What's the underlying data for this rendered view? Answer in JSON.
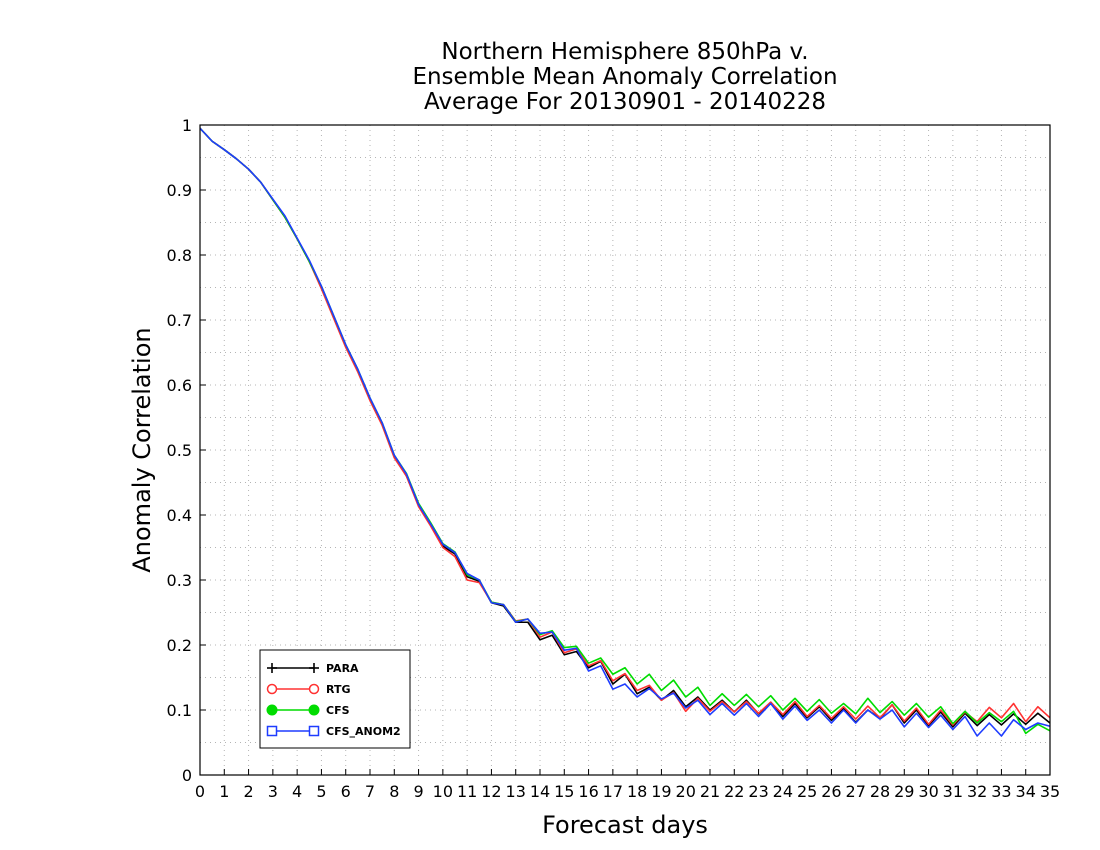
{
  "chart_data": {
    "type": "line",
    "title": [
      "Northern Hemisphere 850hPa v.",
      "Ensemble Mean Anomaly Correlation",
      "Average For 20130901 - 20140228"
    ],
    "xlabel": "Forecast days",
    "ylabel": "Anomaly Correlation",
    "xlim": [
      0,
      35
    ],
    "ylim": [
      0,
      1
    ],
    "xticks": [
      0,
      1,
      2,
      3,
      4,
      5,
      6,
      7,
      8,
      9,
      10,
      11,
      12,
      13,
      14,
      15,
      16,
      17,
      18,
      19,
      20,
      21,
      22,
      23,
      24,
      25,
      26,
      27,
      28,
      29,
      30,
      31,
      32,
      33,
      34,
      35
    ],
    "yticks": [
      0,
      0.1,
      0.2,
      0.3,
      0.4,
      0.5,
      0.6,
      0.7,
      0.8,
      0.9,
      1
    ],
    "ytick_labels": [
      "0",
      "0.1",
      "0.2",
      "0.3",
      "0.4",
      "0.5",
      "0.6",
      "0.7",
      "0.8",
      "0.9",
      "1"
    ],
    "grid": true,
    "legend_position": "bottom-left",
    "x": [
      0,
      0.5,
      1,
      1.5,
      2,
      2.5,
      3,
      3.5,
      4,
      4.5,
      5,
      5.5,
      6,
      6.5,
      7,
      7.5,
      8,
      8.5,
      9,
      9.5,
      10,
      10.5,
      11,
      11.5,
      12,
      12.5,
      13,
      13.5,
      14,
      14.5,
      15,
      15.5,
      16,
      16.5,
      17,
      17.5,
      18,
      18.5,
      19,
      19.5,
      20,
      20.5,
      21,
      21.5,
      22,
      22.5,
      23,
      23.5,
      24,
      24.5,
      25,
      25.5,
      26,
      26.5,
      27,
      27.5,
      28,
      28.5,
      29,
      29.5,
      30,
      30.5,
      31,
      31.5,
      32,
      32.5,
      33,
      33.5,
      34,
      34.5,
      35
    ],
    "series": [
      {
        "name": "PARA",
        "color": "#000000",
        "marker": "plus",
        "values": [
          0.995,
          0.975,
          0.962,
          0.948,
          0.932,
          0.912,
          0.885,
          0.858,
          0.825,
          0.79,
          0.75,
          0.705,
          0.66,
          0.622,
          0.578,
          0.54,
          0.49,
          0.46,
          0.415,
          0.385,
          0.352,
          0.34,
          0.305,
          0.298,
          0.265,
          0.26,
          0.235,
          0.235,
          0.208,
          0.215,
          0.185,
          0.19,
          0.165,
          0.175,
          0.14,
          0.155,
          0.125,
          0.135,
          0.115,
          0.13,
          0.105,
          0.12,
          0.1,
          0.115,
          0.097,
          0.115,
          0.094,
          0.112,
          0.09,
          0.11,
          0.088,
          0.105,
          0.084,
          0.102,
          0.081,
          0.1,
          0.087,
          0.108,
          0.08,
          0.1,
          0.076,
          0.097,
          0.074,
          0.095,
          0.076,
          0.093,
          0.077,
          0.094,
          0.078,
          0.095,
          0.08
        ]
      },
      {
        "name": "RTG",
        "color": "#ff3232",
        "marker": "open-circle",
        "values": [
          0.995,
          0.975,
          0.962,
          0.948,
          0.932,
          0.912,
          0.885,
          0.858,
          0.825,
          0.79,
          0.748,
          0.703,
          0.658,
          0.62,
          0.576,
          0.538,
          0.488,
          0.46,
          0.413,
          0.383,
          0.35,
          0.336,
          0.3,
          0.296,
          0.266,
          0.262,
          0.237,
          0.24,
          0.212,
          0.22,
          0.188,
          0.194,
          0.168,
          0.176,
          0.145,
          0.156,
          0.13,
          0.138,
          0.115,
          0.127,
          0.098,
          0.118,
          0.098,
          0.113,
          0.097,
          0.113,
          0.095,
          0.112,
          0.093,
          0.113,
          0.09,
          0.107,
          0.087,
          0.105,
          0.086,
          0.106,
          0.088,
          0.108,
          0.083,
          0.103,
          0.078,
          0.1,
          0.077,
          0.097,
          0.082,
          0.104,
          0.088,
          0.11,
          0.082,
          0.105,
          0.088
        ]
      },
      {
        "name": "CFS",
        "color": "#00dc00",
        "marker": "filled-circle",
        "values": [
          0.995,
          0.975,
          0.962,
          0.948,
          0.932,
          0.912,
          0.885,
          0.858,
          0.825,
          0.79,
          0.752,
          0.707,
          0.662,
          0.624,
          0.58,
          0.542,
          0.492,
          0.464,
          0.418,
          0.388,
          0.356,
          0.343,
          0.308,
          0.3,
          0.266,
          0.262,
          0.236,
          0.24,
          0.216,
          0.222,
          0.196,
          0.198,
          0.172,
          0.18,
          0.155,
          0.165,
          0.14,
          0.155,
          0.13,
          0.146,
          0.12,
          0.135,
          0.107,
          0.125,
          0.107,
          0.124,
          0.105,
          0.122,
          0.1,
          0.118,
          0.098,
          0.116,
          0.095,
          0.11,
          0.094,
          0.118,
          0.096,
          0.113,
          0.092,
          0.11,
          0.089,
          0.105,
          0.079,
          0.098,
          0.08,
          0.096,
          0.082,
          0.098,
          0.064,
          0.078,
          0.068
        ]
      },
      {
        "name": "CFS_ANOM2",
        "color": "#1e3cff",
        "marker": "open-square",
        "values": [
          0.995,
          0.975,
          0.962,
          0.948,
          0.932,
          0.912,
          0.886,
          0.86,
          0.826,
          0.792,
          0.752,
          0.707,
          0.662,
          0.624,
          0.58,
          0.542,
          0.492,
          0.463,
          0.416,
          0.386,
          0.355,
          0.342,
          0.31,
          0.3,
          0.265,
          0.262,
          0.235,
          0.24,
          0.218,
          0.22,
          0.192,
          0.195,
          0.16,
          0.168,
          0.132,
          0.14,
          0.12,
          0.133,
          0.117,
          0.126,
          0.103,
          0.115,
          0.093,
          0.11,
          0.092,
          0.11,
          0.09,
          0.11,
          0.086,
          0.106,
          0.084,
          0.1,
          0.08,
          0.1,
          0.08,
          0.1,
          0.086,
          0.1,
          0.074,
          0.095,
          0.073,
          0.092,
          0.07,
          0.09,
          0.06,
          0.08,
          0.06,
          0.085,
          0.07,
          0.08,
          0.075
        ]
      }
    ]
  }
}
